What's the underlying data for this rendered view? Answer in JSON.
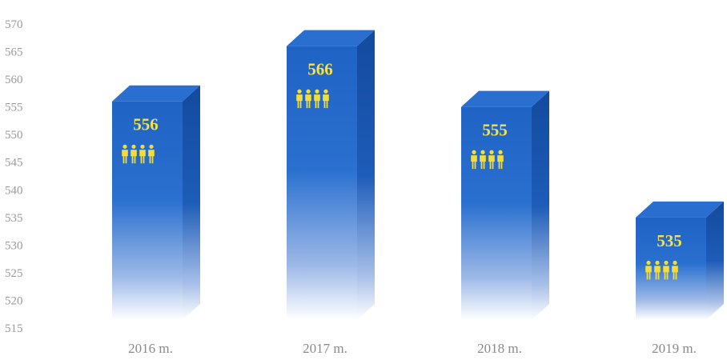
{
  "chart_data": {
    "type": "bar",
    "categories": [
      "2016 m.",
      "2017 m.",
      "2018 m.",
      "2019 m."
    ],
    "values": [
      556,
      566,
      555,
      535
    ],
    "data_labels": [
      "556",
      "566",
      "555",
      "535"
    ],
    "ylim": [
      515,
      570
    ],
    "yticks": [
      "515",
      "520",
      "525",
      "530",
      "535",
      "540",
      "545",
      "550",
      "555",
      "560",
      "565",
      "570"
    ],
    "title": "",
    "xlabel": "",
    "ylabel": "",
    "style": "3d-bar",
    "grid": false,
    "legend": "none",
    "colors": {
      "bar_front": "#1f63c4",
      "bar_side": "#134a9e",
      "bar_top": "#2a6fd0",
      "label": "#f5e24a",
      "people_icon": "#f2dd3c",
      "tick_text": "#9a9a9a"
    },
    "icons": {
      "people": "people-group-icon"
    }
  }
}
